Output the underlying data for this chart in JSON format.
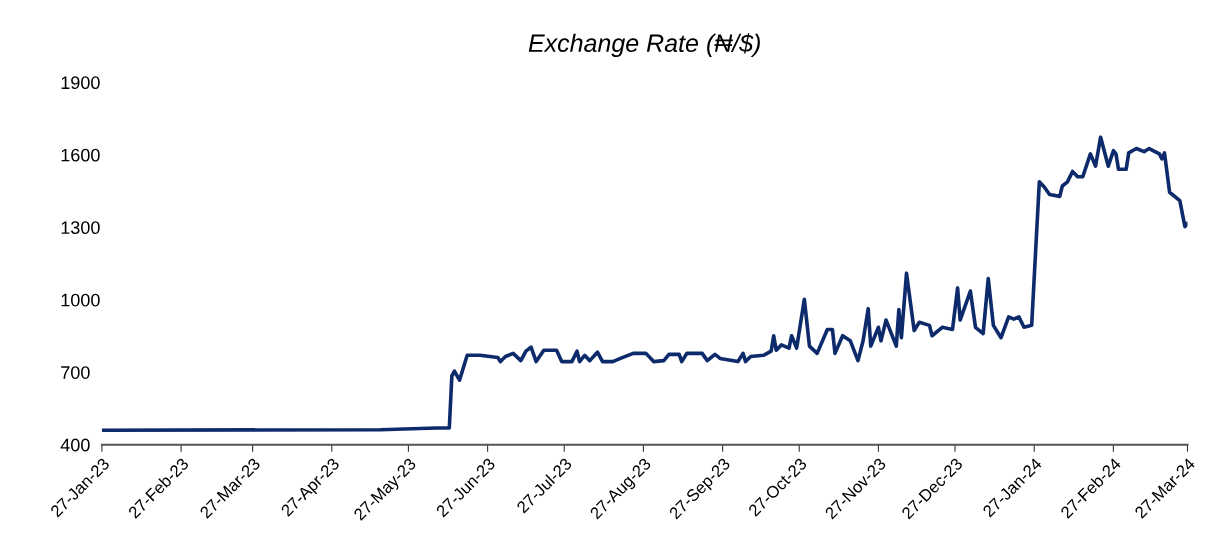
{
  "chart_data": {
    "type": "line",
    "title": "Exchange Rate (₦/$)",
    "x": [
      "2023-01-27",
      "2023-05-16",
      "2023-06-07",
      "2023-06-12",
      "2023-06-13",
      "2023-06-14",
      "2023-06-16",
      "2023-06-19",
      "2023-06-24",
      "2023-07-01",
      "2023-07-02",
      "2023-07-04",
      "2023-07-07",
      "2023-07-10",
      "2023-07-12",
      "2023-07-14",
      "2023-07-16",
      "2023-07-19",
      "2023-07-24",
      "2023-07-26",
      "2023-07-30",
      "2023-08-01",
      "2023-08-02",
      "2023-08-04",
      "2023-08-06",
      "2023-08-09",
      "2023-08-11",
      "2023-08-15",
      "2023-08-18",
      "2023-08-23",
      "2023-08-28",
      "2023-08-31",
      "2023-09-04",
      "2023-09-06",
      "2023-09-10",
      "2023-09-11",
      "2023-09-13",
      "2023-09-19",
      "2023-09-21",
      "2023-09-24",
      "2023-09-26",
      "2023-10-03",
      "2023-10-05",
      "2023-10-06",
      "2023-10-08",
      "2023-10-13",
      "2023-10-16",
      "2023-10-17",
      "2023-10-18",
      "2023-10-20",
      "2023-10-23",
      "2023-10-24",
      "2023-10-26",
      "2023-10-29",
      "2023-10-31",
      "2023-11-03",
      "2023-11-07",
      "2023-11-09",
      "2023-11-10",
      "2023-11-13",
      "2023-11-16",
      "2023-11-19",
      "2023-11-21",
      "2023-11-23",
      "2023-11-24",
      "2023-11-27",
      "2023-11-28",
      "2023-11-30",
      "2023-12-04",
      "2023-12-05",
      "2023-12-06",
      "2023-12-08",
      "2023-12-11",
      "2023-12-13",
      "2023-12-17",
      "2023-12-18",
      "2023-12-22",
      "2023-12-26",
      "2023-12-28",
      "2023-12-29",
      "2024-01-02",
      "2024-01-04",
      "2024-01-07",
      "2024-01-09",
      "2024-01-11",
      "2024-01-14",
      "2024-01-17",
      "2024-01-19",
      "2024-01-21",
      "2024-01-23",
      "2024-01-26",
      "2024-01-29",
      "2024-01-31",
      "2024-02-02",
      "2024-02-06",
      "2024-02-07",
      "2024-02-09",
      "2024-02-11",
      "2024-02-13",
      "2024-02-15",
      "2024-02-18",
      "2024-02-20",
      "2024-02-22",
      "2024-02-25",
      "2024-02-27",
      "2024-02-28",
      "2024-02-29",
      "2024-03-03",
      "2024-03-04",
      "2024-03-07",
      "2024-03-10",
      "2024-03-12",
      "2024-03-16",
      "2024-03-17",
      "2024-03-18",
      "2024-03-20",
      "2024-03-24",
      "2024-03-26",
      "2024-03-27"
    ],
    "series": [
      {
        "color": "#0d2a6b",
        "values": [
          460,
          462,
          469,
          469,
          684,
          705,
          667,
          770,
          770,
          761,
          744,
          765,
          778,
          748,
          787,
          804,
          744,
          791,
          791,
          744,
          744,
          787,
          744,
          770,
          748,
          783,
          744,
          744,
          757,
          778,
          778,
          744,
          748,
          774,
          774,
          744,
          778,
          778,
          748,
          774,
          757,
          744,
          778,
          744,
          765,
          770,
          787,
          851,
          791,
          813,
          800,
          851,
          800,
          1002,
          808,
          778,
          877,
          877,
          778,
          851,
          830,
          748,
          830,
          963,
          808,
          886,
          830,
          916,
          808,
          959,
          843,
          1110,
          873,
          907,
          894,
          851,
          886,
          877,
          1049,
          916,
          1036,
          886,
          860,
          1088,
          894,
          843,
          929,
          920,
          929,
          886,
          894,
          1488,
          1466,
          1436,
          1428,
          1471,
          1488,
          1531,
          1509,
          1509,
          1604,
          1553,
          1673,
          1553,
          1617,
          1604,
          1540,
          1540,
          1608,
          1626,
          1613,
          1626,
          1604,
          1583,
          1608,
          1445,
          1410,
          1303,
          1316
        ]
      }
    ],
    "xlim": [
      "2023-01-27",
      "2024-03-27"
    ],
    "xticks": [
      {
        "value": "2023-01-27",
        "label": "27-Jan-23"
      },
      {
        "value": "2023-02-27",
        "label": "27-Feb-23"
      },
      {
        "value": "2023-03-27",
        "label": "27-Mar-23"
      },
      {
        "value": "2023-04-27",
        "label": "27-Apr-23"
      },
      {
        "value": "2023-05-27",
        "label": "27-May-23"
      },
      {
        "value": "2023-06-27",
        "label": "27-Jun-23"
      },
      {
        "value": "2023-07-27",
        "label": "27-Jul-23"
      },
      {
        "value": "2023-08-27",
        "label": "27-Aug-23"
      },
      {
        "value": "2023-09-27",
        "label": "27-Sep-23"
      },
      {
        "value": "2023-10-27",
        "label": "27-Oct-23"
      },
      {
        "value": "2023-11-27",
        "label": "27-Nov-23"
      },
      {
        "value": "2023-12-27",
        "label": "27-Dec-23"
      },
      {
        "value": "2024-01-27",
        "label": "27-Jan-24"
      },
      {
        "value": "2024-02-27",
        "label": "27-Feb-24"
      },
      {
        "value": "2024-03-27",
        "label": "27-Mar-24"
      }
    ],
    "ylim": [
      400,
      1900
    ],
    "yticks": [
      400,
      700,
      1000,
      1300,
      1600,
      1900
    ],
    "grid": false,
    "marker": "none",
    "line_style": "solid"
  }
}
